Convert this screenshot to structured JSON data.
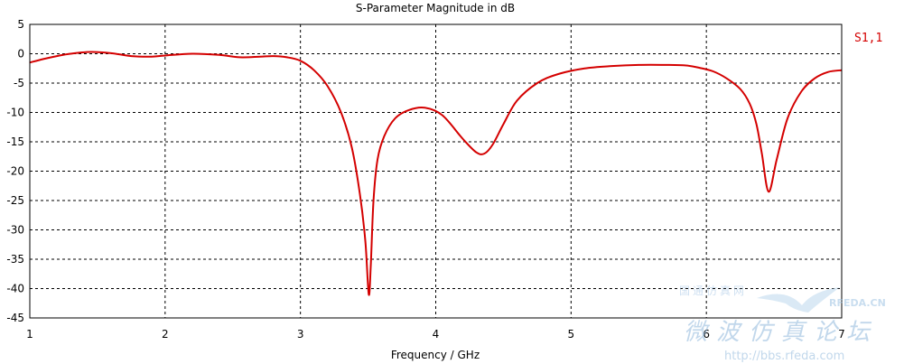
{
  "chart_data": {
    "type": "line",
    "title": "S-Parameter Magnitude in dB",
    "xlabel": "Frequency / GHz",
    "ylabel": "",
    "xlim": [
      1,
      7
    ],
    "ylim": [
      -45,
      5
    ],
    "xticks": [
      1,
      2,
      3,
      4,
      5,
      6,
      7
    ],
    "yticks": [
      5,
      0,
      -5,
      -10,
      -15,
      -20,
      -25,
      -30,
      -35,
      -40,
      -45
    ],
    "grid": true,
    "legend_placement": "top-right",
    "series": [
      {
        "name": "S1,1",
        "color": "#d40000",
        "x": [
          1.0,
          1.1,
          1.2,
          1.3,
          1.45,
          1.6,
          1.75,
          1.9,
          2.0,
          2.2,
          2.4,
          2.55,
          2.7,
          2.8,
          2.9,
          3.0,
          3.1,
          3.2,
          3.3,
          3.38,
          3.44,
          3.48,
          3.505,
          3.52,
          3.54,
          3.57,
          3.62,
          3.7,
          3.8,
          3.92,
          4.05,
          4.2,
          4.3,
          4.36,
          4.42,
          4.5,
          4.6,
          4.75,
          4.9,
          5.1,
          5.3,
          5.5,
          5.7,
          5.85,
          5.95,
          6.05,
          6.15,
          6.25,
          6.32,
          6.37,
          6.41,
          6.46,
          6.52,
          6.6,
          6.7,
          6.8,
          6.9,
          7.0
        ],
        "y": [
          -1.5,
          -0.9,
          -0.4,
          0.0,
          0.3,
          0.1,
          -0.4,
          -0.5,
          -0.3,
          0.0,
          -0.2,
          -0.6,
          -0.5,
          -0.4,
          -0.6,
          -1.2,
          -2.8,
          -5.5,
          -10.0,
          -16.0,
          -24.0,
          -32.0,
          -41.0,
          -36.0,
          -25.0,
          -18.0,
          -14.0,
          -11.0,
          -9.6,
          -9.2,
          -10.5,
          -14.5,
          -16.8,
          -17.0,
          -15.5,
          -12.0,
          -8.0,
          -5.0,
          -3.5,
          -2.5,
          -2.1,
          -1.9,
          -1.9,
          -2.0,
          -2.4,
          -3.0,
          -4.2,
          -6.0,
          -8.5,
          -12.0,
          -17.0,
          -23.5,
          -18.0,
          -11.0,
          -6.5,
          -4.2,
          -3.1,
          -2.8
        ]
      }
    ]
  },
  "watermark": {
    "brand": "RFEDA.CN",
    "line1": "国通仿真网",
    "line2": "微波仿真论坛",
    "url": "http://bbs.rfeda.com"
  }
}
